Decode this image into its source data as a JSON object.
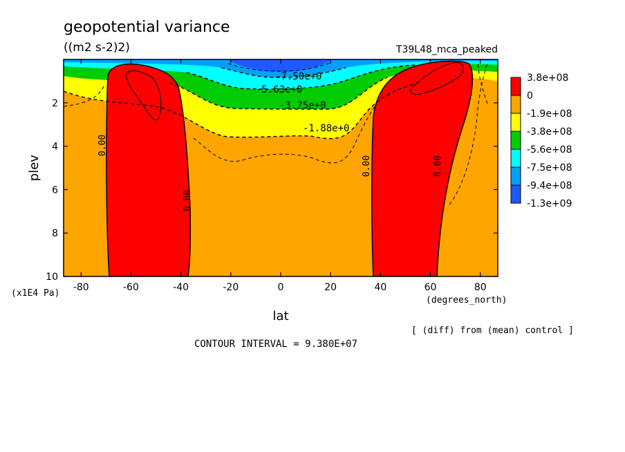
{
  "chart_data": {
    "type": "heatmap",
    "title": "geopotential variance",
    "subtitle": "((m2 s-2)2)",
    "experiment": "T39L48_mca_peaked",
    "xlabel": "lat",
    "xunits": "(degrees_north)",
    "ylabel": "plev",
    "yunits": "(x1E4 Pa)",
    "xlim": [
      -87,
      87
    ],
    "ylim": [
      10,
      0
    ],
    "xticks": [
      -80,
      -60,
      -40,
      -20,
      0,
      20,
      40,
      60,
      80
    ],
    "yticks": [
      2,
      4,
      6,
      8,
      10
    ],
    "colorbar": {
      "labels": [
        "3.8e+08",
        "0",
        "-1.9e+08",
        "-3.8e+08",
        "-5.6e+08",
        "-7.5e+08",
        "-9.4e+08",
        "-1.3e+09"
      ],
      "colors": [
        "#ff0000",
        "#ffa500",
        "#ffff00",
        "#00cc00",
        "#00ffff",
        "#00a0ff",
        "#1e5aff"
      ]
    },
    "contour_labels": [
      "-7.50e+0",
      "-5.63e+0",
      "-3.75e+0",
      "-1.88e+0",
      "0.00",
      "0.00",
      "0.00",
      "0.00"
    ],
    "contour_interval_text": "CONTOUR INTERVAL = 9.380E+07",
    "note": "[ (diff) from (mean) control ]"
  }
}
